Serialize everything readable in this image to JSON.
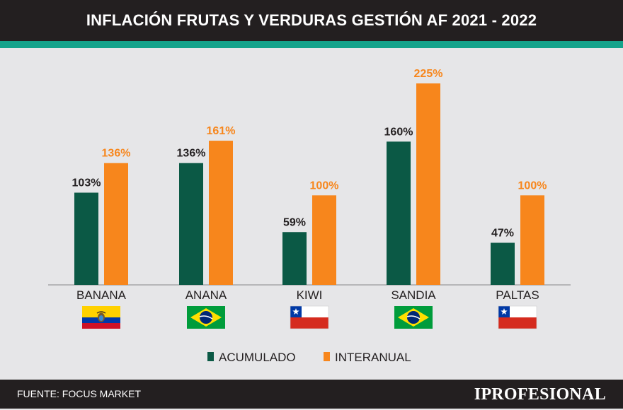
{
  "header": {
    "title": "INFLACIÓN FRUTAS Y VERDURAS GESTIÓN AF 2021 - 2022"
  },
  "footer": {
    "source": "FUENTE: FOCUS MARKET",
    "brand": "IPROFESIONAL"
  },
  "colors": {
    "acumulado": "#0b5945",
    "interanual": "#f7861c",
    "accent": "#14a38b",
    "dark": "#231f20",
    "background": "#e6e6e8"
  },
  "chart_data": {
    "type": "bar",
    "title": "INFLACIÓN FRUTAS Y VERDURAS GESTIÓN AF 2021 - 2022",
    "categories": [
      "BANANA",
      "ANANA",
      "KIWI",
      "SANDIA",
      "PALTAS"
    ],
    "flags": [
      "ecuador",
      "brazil",
      "chile",
      "brazil",
      "chile"
    ],
    "series": [
      {
        "name": "ACUMULADO",
        "color": "#0b5945",
        "values": [
          103,
          136,
          59,
          160,
          47
        ],
        "labels": [
          "103%",
          "136%",
          "59%",
          "160%",
          "47%"
        ]
      },
      {
        "name": "INTERANUAL",
        "color": "#f7861c",
        "values": [
          136,
          161,
          100,
          225,
          100
        ],
        "labels": [
          "136%",
          "161%",
          "100%",
          "225%",
          "100%"
        ]
      }
    ],
    "ylim": [
      0,
      225
    ],
    "xlabel": "",
    "ylabel": "",
    "grid": false,
    "legend": "bottom-center"
  }
}
